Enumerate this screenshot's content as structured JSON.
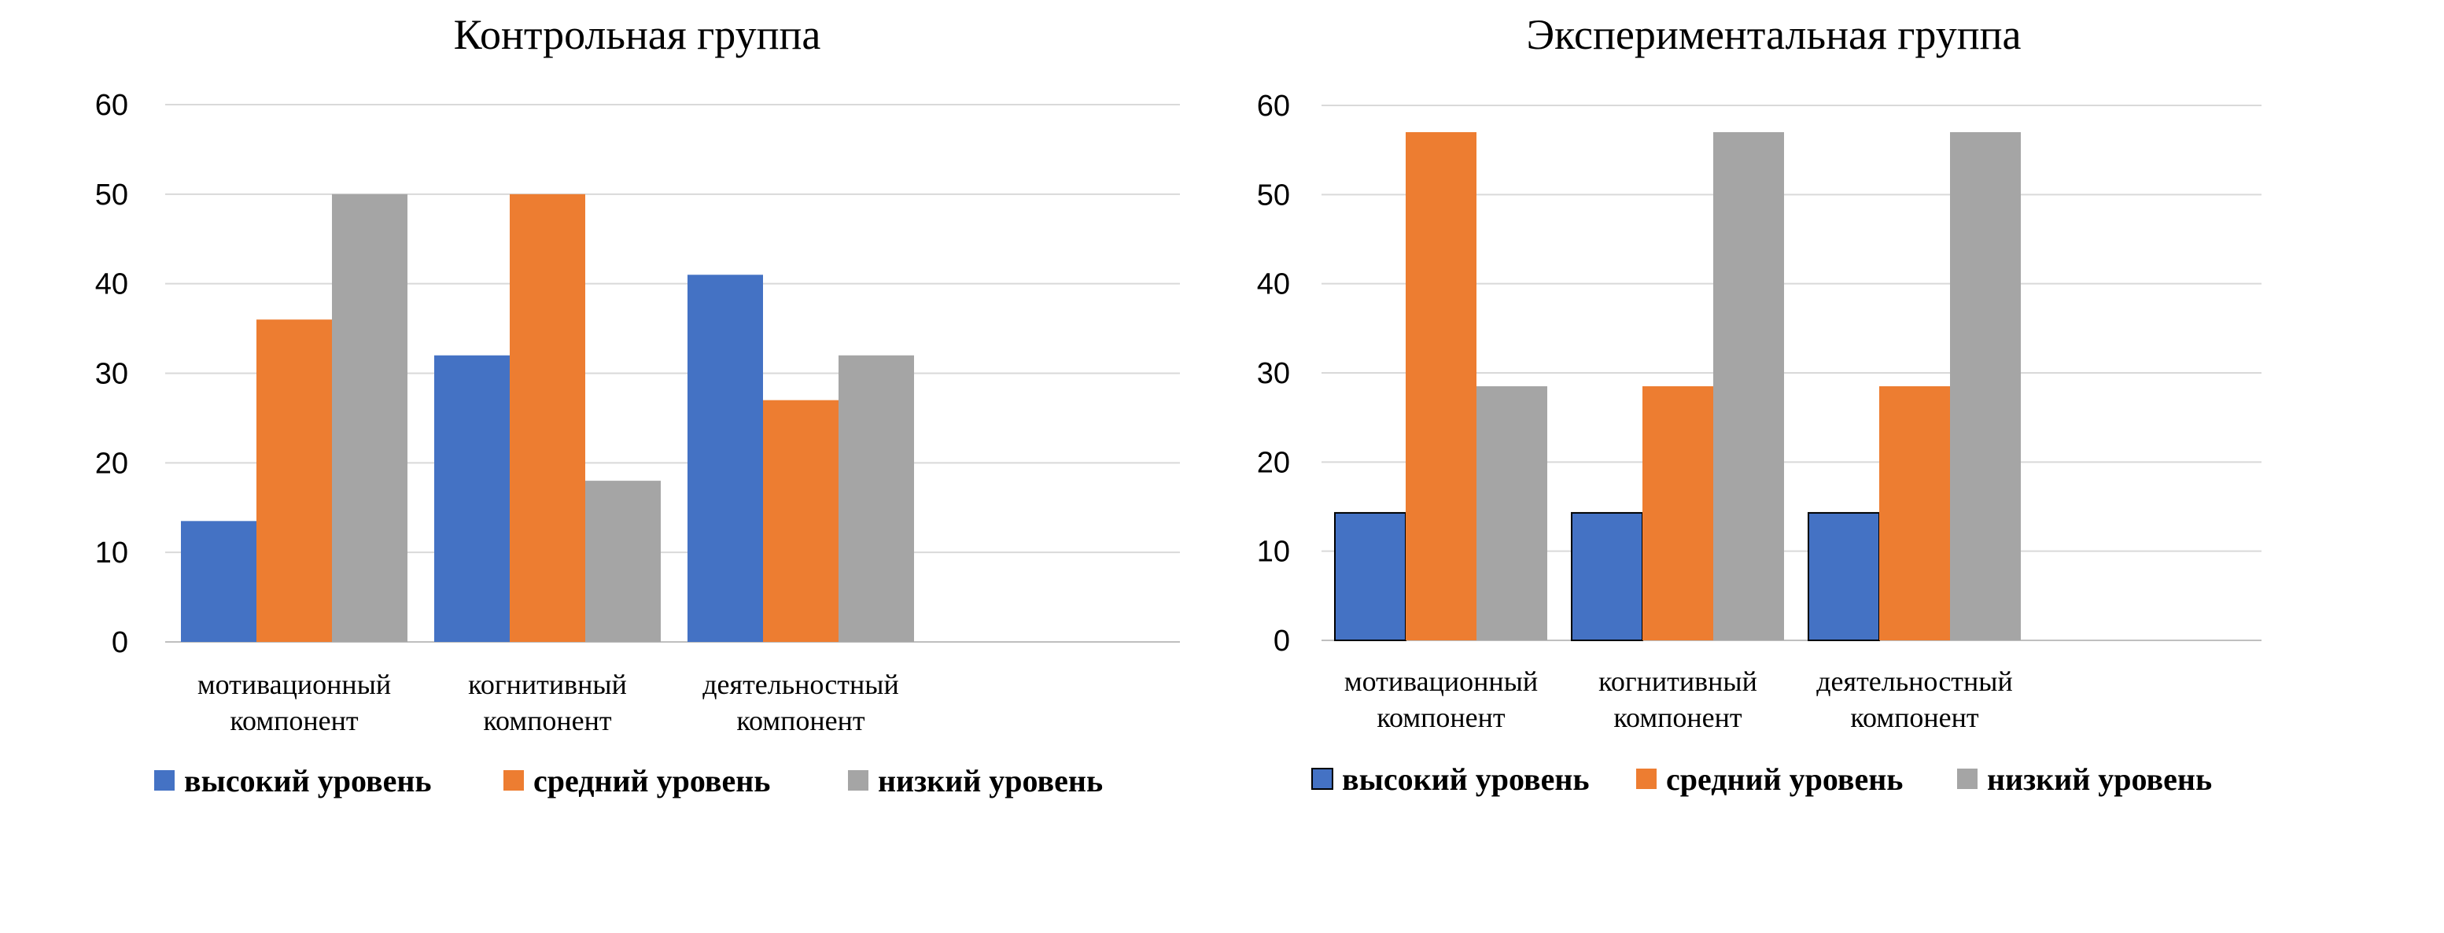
{
  "chart_data": [
    {
      "type": "bar",
      "title": "Контрольная группа",
      "categories": [
        [
          "мотивационный",
          "компонент"
        ],
        [
          "когнитивный",
          "компонент"
        ],
        [
          "деятельностный",
          "компонент"
        ]
      ],
      "series": [
        {
          "name": "высокий уровень",
          "color": "#4472c4",
          "values": [
            13.5,
            32,
            41
          ]
        },
        {
          "name": "средний уровень",
          "color": "#ed7d31",
          "values": [
            36,
            50,
            27
          ]
        },
        {
          "name": "низкий уровень",
          "color": "#a5a5a5",
          "values": [
            50,
            18,
            32
          ]
        }
      ],
      "ylim": [
        0,
        60
      ],
      "yticks": [
        "0",
        "10",
        "20",
        "30",
        "40",
        "50",
        "60"
      ],
      "grid": true,
      "legend": "bottom",
      "bar_outline": false
    },
    {
      "type": "bar",
      "title": "Экспериментальная группа",
      "categories": [
        [
          "мотивационный",
          "компонент"
        ],
        [
          "когнитивный",
          "компонент"
        ],
        [
          "деятельностный",
          "компонент"
        ]
      ],
      "series": [
        {
          "name": "высокий уровень",
          "color": "#4472c4",
          "values": [
            14.3,
            14.3,
            14.3
          ]
        },
        {
          "name": "средний уровень",
          "color": "#ed7d31",
          "values": [
            57,
            28.5,
            28.5
          ]
        },
        {
          "name": "низкий уровень",
          "color": "#a5a5a5",
          "values": [
            28.5,
            57,
            57
          ]
        }
      ],
      "ylim": [
        0,
        60
      ],
      "yticks": [
        "0",
        "10",
        "20",
        "30",
        "40",
        "50",
        "60"
      ],
      "grid": true,
      "legend": "bottom",
      "bar_outline": true
    }
  ]
}
